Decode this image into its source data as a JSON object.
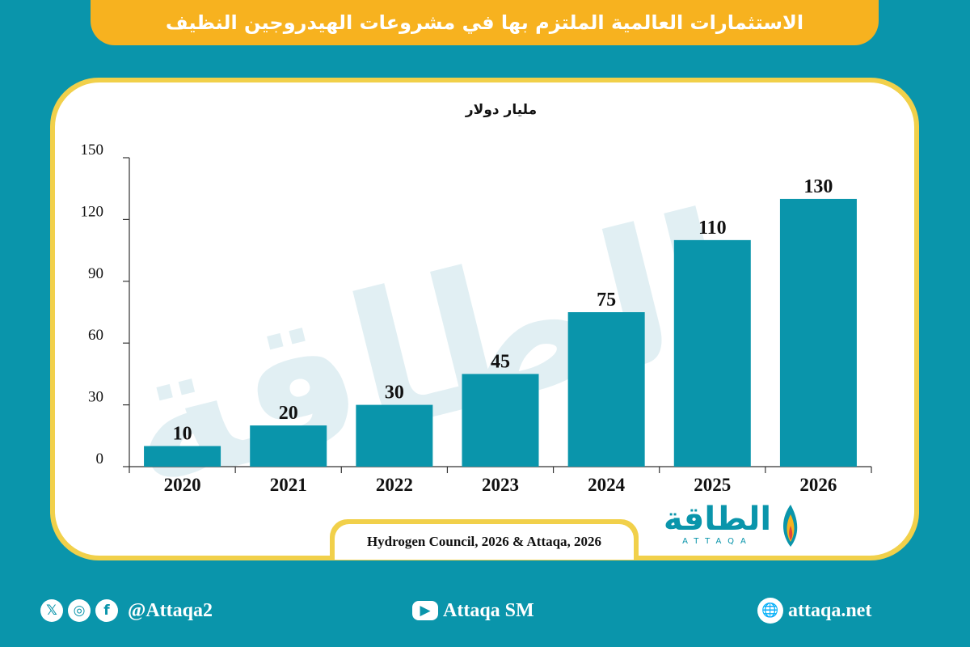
{
  "title": "الاستثمارات العالمية الملتزم بها في مشروعات الهيدروجين النظيف",
  "watermark": "الطاقة",
  "chart_data": {
    "type": "bar",
    "title": "الاستثمارات العالمية الملتزم بها في مشروعات الهيدروجين النظيف",
    "ylabel": "مليار دولار",
    "xlabel": "",
    "categories": [
      "2020",
      "2021",
      "2022",
      "2023",
      "2024",
      "2025",
      "2026"
    ],
    "values": [
      10,
      20,
      30,
      45,
      75,
      110,
      130
    ],
    "ylim": [
      0,
      150
    ],
    "yticks": [
      0,
      30,
      60,
      90,
      120,
      150
    ],
    "bar_color": "#0a95ab",
    "grid": false
  },
  "source": "Hydrogen Council, 2026 & Attaqa, 2026",
  "logo": {
    "arabic": "الطاقة",
    "latin": "ATTAQA"
  },
  "footer": {
    "social_handle": "@Attaqa2",
    "youtube": "Attaqa SM",
    "website": "attaqa.net"
  },
  "colors": {
    "background": "#0a95ab",
    "banner": "#f7b21f",
    "card_border": "#f1d04a",
    "card": "#ffffff"
  }
}
